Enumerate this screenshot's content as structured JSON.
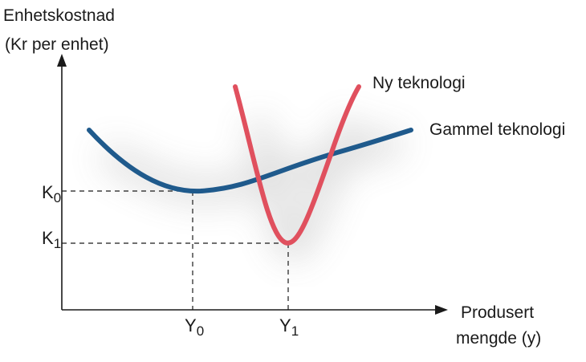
{
  "y_axis_title": [
    "Enhetskostnad",
    "(Kr per enhet)"
  ],
  "x_axis_title": [
    "Produsert",
    "mengde (y)"
  ],
  "ticks": {
    "k0": {
      "base": "K",
      "sub": "0"
    },
    "k1": {
      "base": "K",
      "sub": "1"
    },
    "y0": {
      "base": "Y",
      "sub": "0"
    },
    "y1": {
      "base": "Y",
      "sub": "1"
    }
  },
  "curves": {
    "old": {
      "label": "Gammel teknologi",
      "color": "#1f5a8c"
    },
    "new": {
      "label": "Ny teknologi",
      "color": "#e0505e"
    }
  },
  "colors": {
    "axis": "#1a1a1a",
    "guide": "#1a1a1a"
  }
}
